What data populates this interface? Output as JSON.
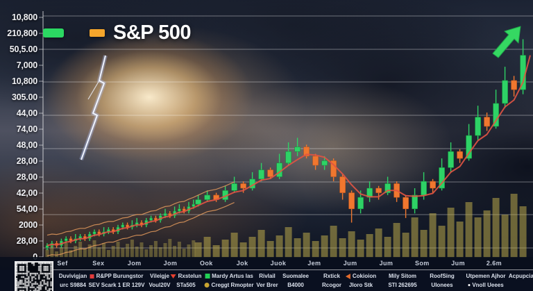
{
  "legend": {
    "title": "S&P 500",
    "swatches": [
      {
        "name": "candles",
        "color": "#2bd862"
      },
      {
        "name": "ma-line",
        "color": "#f5a62c"
      }
    ]
  },
  "chart_data": {
    "type": "candlestick",
    "title": "S&P 500",
    "y_tick_labels": [
      "10,800",
      "210,800",
      "50,5.00",
      "7,000",
      "10,800",
      "305.00",
      "44,00",
      "74,00",
      "48,00",
      "28,00",
      "28,00",
      "42,00",
      "54,00",
      "2000",
      "28,00",
      "0"
    ],
    "x_tick_labels": [
      "Sef",
      "Sex",
      "Jom",
      "Jom",
      "Ook",
      "Jok",
      "Juok",
      "Jem",
      "Jum",
      "Jum",
      "Som",
      "Jum",
      "2.6m"
    ],
    "ylim": [
      0,
      100
    ],
    "grid": "horizontal",
    "legend_position": "top-left",
    "ma_window": 4,
    "candle_format": "o,c,h,l",
    "candles": [
      [
        4,
        5,
        6,
        3
      ],
      [
        5,
        6,
        7,
        4
      ],
      [
        6,
        5,
        7,
        4
      ],
      [
        5,
        7,
        8,
        4
      ],
      [
        7,
        8,
        9,
        6
      ],
      [
        8,
        7,
        9,
        6
      ],
      [
        7,
        8,
        10,
        6
      ],
      [
        8,
        9,
        10,
        7
      ],
      [
        9,
        8,
        10,
        7
      ],
      [
        8,
        10,
        11,
        7
      ],
      [
        10,
        11,
        12,
        9
      ],
      [
        11,
        10,
        12,
        9
      ],
      [
        10,
        11,
        13,
        9
      ],
      [
        11,
        12,
        13,
        10
      ],
      [
        12,
        11,
        13,
        10
      ],
      [
        11,
        13,
        14,
        10
      ],
      [
        13,
        14,
        15,
        12
      ],
      [
        14,
        13,
        15,
        12
      ],
      [
        13,
        14,
        16,
        12
      ],
      [
        14,
        15,
        17,
        13
      ],
      [
        15,
        14,
        16,
        13
      ],
      [
        14,
        16,
        17,
        13
      ],
      [
        16,
        17,
        18,
        15
      ],
      [
        17,
        16,
        18,
        15
      ],
      [
        16,
        18,
        19,
        15
      ],
      [
        18,
        19,
        21,
        17
      ],
      [
        19,
        18,
        20,
        17
      ],
      [
        18,
        20,
        22,
        17
      ],
      [
        20,
        21,
        23,
        19
      ],
      [
        21,
        20,
        22,
        19
      ],
      [
        20,
        22,
        24,
        19
      ],
      [
        22,
        23,
        25,
        21
      ],
      [
        23,
        25,
        27,
        22
      ],
      [
        25,
        27,
        29,
        24
      ],
      [
        27,
        25,
        28,
        24
      ],
      [
        25,
        29,
        31,
        24
      ],
      [
        29,
        32,
        35,
        28
      ],
      [
        32,
        30,
        33,
        28
      ],
      [
        30,
        34,
        37,
        29
      ],
      [
        34,
        38,
        41,
        33
      ],
      [
        38,
        35,
        39,
        34
      ],
      [
        35,
        41,
        45,
        34
      ],
      [
        41,
        46,
        50,
        40
      ],
      [
        46,
        48,
        52,
        44
      ],
      [
        48,
        44,
        49,
        43
      ],
      [
        44,
        40,
        45,
        38
      ],
      [
        40,
        42,
        44,
        38
      ],
      [
        42,
        35,
        43,
        33
      ],
      [
        35,
        28,
        36,
        25
      ],
      [
        28,
        21,
        29,
        15
      ],
      [
        21,
        26,
        29,
        19
      ],
      [
        26,
        30,
        33,
        24
      ],
      [
        30,
        28,
        31,
        25
      ],
      [
        28,
        32,
        35,
        27
      ],
      [
        32,
        26,
        33,
        24
      ],
      [
        26,
        21,
        27,
        17
      ],
      [
        21,
        27,
        30,
        19
      ],
      [
        27,
        33,
        37,
        25
      ],
      [
        33,
        30,
        34,
        28
      ],
      [
        30,
        39,
        43,
        29
      ],
      [
        39,
        46,
        50,
        37
      ],
      [
        46,
        43,
        47,
        41
      ],
      [
        43,
        53,
        58,
        42
      ],
      [
        53,
        61,
        66,
        51
      ],
      [
        61,
        57,
        63,
        55
      ],
      [
        57,
        67,
        73,
        56
      ],
      [
        67,
        77,
        83,
        65
      ],
      [
        77,
        73,
        79,
        70
      ],
      [
        73,
        88,
        95,
        71
      ]
    ],
    "volume": [
      12,
      18,
      9,
      15,
      21,
      11,
      17,
      23,
      13,
      19,
      25,
      15,
      21,
      11,
      17,
      23,
      14,
      20,
      26,
      16,
      22,
      12,
      18,
      24,
      15,
      21,
      27,
      17,
      23,
      13,
      19,
      25,
      22,
      30,
      18,
      26,
      36,
      22,
      30,
      40,
      24,
      32,
      44,
      28,
      36,
      24,
      32,
      46,
      28,
      38,
      26,
      34,
      42,
      30,
      50,
      36,
      58,
      40,
      64,
      46,
      72,
      52,
      80,
      58,
      68,
      86,
      62,
      92,
      74
    ],
    "annotations": [
      "green up-right trend arrow at top right",
      "lightning storm photo background"
    ],
    "colors": {
      "up": "#2ed266",
      "down": "#f0772f",
      "ma": "#e05443",
      "volume": "#c9b64e",
      "grid": "rgba(255,255,255,0.38)"
    }
  },
  "footer": {
    "columns": [
      {
        "top": "Duvivigjan",
        "bottom": "urc S9884"
      },
      {
        "top": "R&PP Burungstor",
        "top_marker": "red-square",
        "bottom": "SEV Scark 1 ER 129V"
      },
      {
        "top": "Vileigje",
        "bottom": "Voul20V"
      },
      {
        "top": "Rxstelun",
        "top_marker": "red-triangle-down",
        "bottom": "STa505"
      },
      {
        "top": "Mardy Artus las",
        "top_marker": "green-square",
        "bottom": "Creggt Rmopter",
        "bottom_marker": "yellow-dot"
      },
      {
        "top": "Rivlail",
        "bottom": "Ver Brer"
      },
      {
        "top": "Suomalee",
        "bottom": "B4000"
      },
      {
        "top": "Rxtick",
        "bottom": "Rcogor"
      },
      {
        "top": "Cokioion",
        "top_marker": "orange-left-arrow",
        "bottom": "Jloro Stk"
      },
      {
        "top": "Mily Sitom",
        "bottom": "STI 262695"
      },
      {
        "top": "RoofSing",
        "bottom": "Ulonees"
      },
      {
        "top": "Utpemen Ajhor",
        "bottom": "Vnoll Ueees",
        "bottom_marker": "white-dot"
      },
      {
        "top": "Acpupcial",
        "bottom": ""
      }
    ]
  },
  "decorations": {
    "qr_code": "qr-code",
    "lightning": "lightning-bolt-icon",
    "trend_arrow": "up-right-arrow-icon"
  }
}
